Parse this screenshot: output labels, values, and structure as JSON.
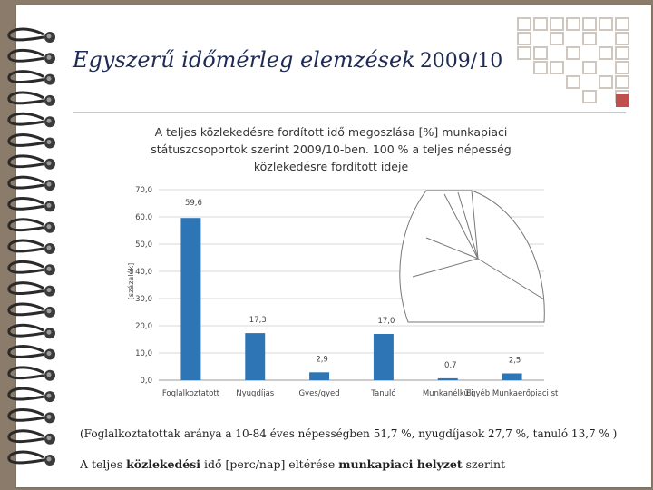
{
  "slide": {
    "title_main": "Egyszerű időmérleg elemzések",
    "title_year": "2009/10",
    "footnote_1": "(Foglalkoztatottak aránya a 10-84 éves népességben 51,7 %, nyugdíjasok 27,7 %, tanuló 13,7 % )",
    "footnote_2_part1": "A teljes ",
    "footnote_2_bold1": "közlekedési",
    "footnote_2_part2": " idő [perc/nap] eltérése ",
    "footnote_2_bold2": "munkapiaci helyzet",
    "footnote_2_part3": " szerint"
  },
  "colors": {
    "bar": "#2e75b6",
    "background": "#8b7b6b",
    "title": "#1f2b55",
    "grid_square": "#cfc7be"
  },
  "chart_data": {
    "type": "bar",
    "title": "A teljes közlekedésre fordított idő megoszlása [%] munkapiaci státuszcsoportok szerint 2009/10-ben. 100 % a teljes népesség közlekedésre fordított ideje",
    "ylabel": "[százalék]",
    "ylim": [
      0,
      70
    ],
    "yticks": [
      "0,0",
      "10,0",
      "20,0",
      "30,0",
      "40,0",
      "50,0",
      "60,0",
      "70,0"
    ],
    "categories": [
      "Foglalkoztatott",
      "Nyugdíjas",
      "Gyes/gyed",
      "Tanuló",
      "Munkanélküli",
      "Egyéb Munkaerőpiaci st"
    ],
    "values": [
      59.6,
      17.3,
      2.9,
      17.0,
      0.7,
      2.5
    ],
    "value_labels": [
      "59,6",
      "17,3",
      "2,9",
      "17,0",
      "0,7",
      "2,5"
    ],
    "grid": true
  }
}
